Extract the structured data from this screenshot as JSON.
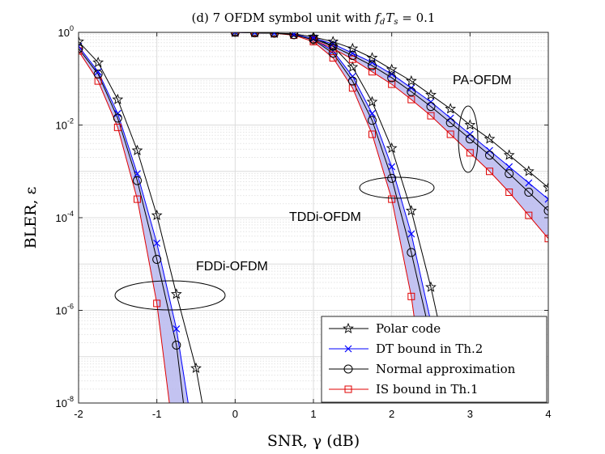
{
  "chart_data": {
    "type": "line",
    "title": "(d) 7 OFDM symbol unit with f_d T_s = 0.1",
    "title_prefix": "(d) 7 OFDM symbol unit with ",
    "title_math": "f",
    "title_math_sub1": "d",
    "title_math_T": "T",
    "title_math_sub2": "s",
    "title_suffix": " = 0.1",
    "xlabel": "SNR, γ (dB)",
    "ylabel": "BLER, ε",
    "xlim": [
      -2,
      4
    ],
    "ylim_log10": [
      -8,
      0
    ],
    "yscale": "log",
    "grid": true,
    "xticks": [
      -2,
      -1,
      0,
      1,
      2,
      3,
      4
    ],
    "yticks": [
      {
        "base": "10",
        "exp": "0"
      },
      {
        "base": "10",
        "exp": "-2"
      },
      {
        "base": "10",
        "exp": "-4"
      },
      {
        "base": "10",
        "exp": "-6"
      },
      {
        "base": "10",
        "exp": "-8"
      }
    ],
    "groups": [
      {
        "name": "FDDi-OFDM",
        "x": [
          -2,
          -1.75,
          -1.5,
          -1.25,
          -1,
          -0.75,
          -0.5
        ],
        "series": {
          "polar": [
            [
              -2,
              -0.2
            ],
            [
              -1.75,
              -0.65
            ],
            [
              -1.5,
              -1.45
            ],
            [
              -1.25,
              -2.55
            ],
            [
              -1,
              -3.95
            ],
            [
              -0.75,
              -5.65
            ],
            [
              -0.5,
              -7.25
            ],
            [
              -0.42,
              -8
            ]
          ],
          "dt": [
            [
              -2,
              -0.3
            ],
            [
              -1.75,
              -0.85
            ],
            [
              -1.5,
              -1.75
            ],
            [
              -1.25,
              -3.05
            ],
            [
              -1,
              -4.55
            ],
            [
              -0.75,
              -6.4
            ],
            [
              -0.6,
              -8
            ]
          ],
          "na": [
            [
              -2,
              -0.35
            ],
            [
              -1.75,
              -0.9
            ],
            [
              -1.5,
              -1.85
            ],
            [
              -1.25,
              -3.2
            ],
            [
              -1,
              -4.9
            ],
            [
              -0.75,
              -6.75
            ],
            [
              -0.66,
              -8
            ]
          ],
          "is": [
            [
              -2,
              -0.4
            ],
            [
              -1.75,
              -1.05
            ],
            [
              -1.5,
              -2.05
            ],
            [
              -1.25,
              -3.6
            ],
            [
              -1,
              -5.85
            ],
            [
              -0.84,
              -8
            ]
          ]
        }
      },
      {
        "name": "TDDi-OFDM",
        "x": [
          0,
          0.25,
          0.5,
          0.75,
          1,
          1.25,
          1.5,
          1.75,
          2,
          2.25,
          2.5,
          2.75
        ],
        "series": {
          "polar": [
            [
              -2,
              0
            ],
            [
              -1.75,
              0
            ],
            [
              -1.5,
              0
            ],
            [
              -1.25,
              0
            ],
            [
              -1,
              0
            ],
            [
              -0.75,
              0
            ],
            [
              -0.5,
              0
            ],
            [
              -0.25,
              0
            ],
            [
              0,
              0
            ],
            [
              0.25,
              -0.01
            ],
            [
              0.5,
              -0.02
            ],
            [
              0.75,
              -0.03
            ],
            [
              1,
              -0.1
            ],
            [
              1.25,
              -0.3
            ],
            [
              1.5,
              -0.75
            ],
            [
              1.75,
              -1.5
            ],
            [
              2,
              -2.5
            ],
            [
              2.25,
              -3.85
            ],
            [
              2.5,
              -5.5
            ],
            [
              2.75,
              -7.4
            ],
            [
              2.84,
              -8
            ]
          ],
          "dt": [
            [
              -2,
              0
            ],
            [
              -1.75,
              0
            ],
            [
              -1.5,
              0
            ],
            [
              -1.25,
              0
            ],
            [
              -1,
              0
            ],
            [
              -0.75,
              0
            ],
            [
              -0.5,
              0
            ],
            [
              -0.25,
              0
            ],
            [
              0,
              0
            ],
            [
              0.25,
              -0.01
            ],
            [
              0.5,
              -0.02
            ],
            [
              0.75,
              -0.04
            ],
            [
              1,
              -0.14
            ],
            [
              1.25,
              -0.4
            ],
            [
              1.5,
              -0.95
            ],
            [
              1.75,
              -1.75
            ],
            [
              2,
              -2.9
            ],
            [
              2.25,
              -4.35
            ],
            [
              2.5,
              -6.25
            ],
            [
              2.68,
              -8
            ]
          ],
          "na": [
            [
              -2,
              0
            ],
            [
              -1.75,
              0
            ],
            [
              -1.5,
              0
            ],
            [
              -1.25,
              0
            ],
            [
              -1,
              0
            ],
            [
              -0.75,
              0
            ],
            [
              -0.5,
              0
            ],
            [
              -0.25,
              0
            ],
            [
              0,
              0
            ],
            [
              0.25,
              -0.01
            ],
            [
              0.5,
              -0.02
            ],
            [
              0.75,
              -0.05
            ],
            [
              1,
              -0.16
            ],
            [
              1.25,
              -0.45
            ],
            [
              1.5,
              -1.05
            ],
            [
              1.75,
              -1.9
            ],
            [
              2,
              -3.15
            ],
            [
              2.25,
              -4.75
            ],
            [
              2.5,
              -6.6
            ],
            [
              2.62,
              -8
            ]
          ],
          "is": [
            [
              -2,
              0
            ],
            [
              -1.75,
              0
            ],
            [
              -1.5,
              0
            ],
            [
              -1.25,
              0
            ],
            [
              -1,
              0
            ],
            [
              -0.75,
              0
            ],
            [
              -0.5,
              0
            ],
            [
              -0.25,
              0
            ],
            [
              0,
              0
            ],
            [
              0.25,
              -0.01
            ],
            [
              0.5,
              -0.02
            ],
            [
              0.75,
              -0.06
            ],
            [
              1,
              -0.2
            ],
            [
              1.25,
              -0.55
            ],
            [
              1.5,
              -1.2
            ],
            [
              1.75,
              -2.2
            ],
            [
              2,
              -3.6
            ],
            [
              2.25,
              -5.7
            ],
            [
              2.44,
              -8
            ]
          ]
        }
      },
      {
        "name": "PA-OFDM",
        "x": [
          1,
          1.25,
          1.5,
          1.75,
          2,
          2.25,
          2.5,
          2.75,
          3,
          3.25,
          3.5,
          3.75,
          4
        ],
        "series": {
          "polar": [
            [
              1,
              -0.1
            ],
            [
              1.25,
              -0.2
            ],
            [
              1.5,
              -0.35
            ],
            [
              1.75,
              -0.55
            ],
            [
              2,
              -0.8
            ],
            [
              2.25,
              -1.05
            ],
            [
              2.5,
              -1.35
            ],
            [
              2.75,
              -1.65
            ],
            [
              3,
              -2
            ],
            [
              3.25,
              -2.3
            ],
            [
              3.5,
              -2.65
            ],
            [
              3.75,
              -3
            ],
            [
              4,
              -3.35
            ]
          ],
          "dt": [
            [
              1,
              -0.12
            ],
            [
              1.25,
              -0.25
            ],
            [
              1.5,
              -0.45
            ],
            [
              1.75,
              -0.65
            ],
            [
              2,
              -0.9
            ],
            [
              2.25,
              -1.2
            ],
            [
              2.5,
              -1.5
            ],
            [
              2.75,
              -1.85
            ],
            [
              3,
              -2.2
            ],
            [
              3.25,
              -2.55
            ],
            [
              3.5,
              -2.9
            ],
            [
              3.75,
              -3.25
            ],
            [
              4,
              -3.6
            ]
          ],
          "na": [
            [
              1,
              -0.14
            ],
            [
              1.25,
              -0.3
            ],
            [
              1.5,
              -0.5
            ],
            [
              1.75,
              -0.72
            ],
            [
              2,
              -0.98
            ],
            [
              2.25,
              -1.28
            ],
            [
              2.5,
              -1.6
            ],
            [
              2.75,
              -1.95
            ],
            [
              3,
              -2.3
            ],
            [
              3.25,
              -2.65
            ],
            [
              3.5,
              -3.05
            ],
            [
              3.75,
              -3.45
            ],
            [
              4,
              -3.85
            ]
          ],
          "is": [
            [
              1,
              -0.16
            ],
            [
              1.25,
              -0.35
            ],
            [
              1.5,
              -0.58
            ],
            [
              1.75,
              -0.85
            ],
            [
              2,
              -1.12
            ],
            [
              2.25,
              -1.45
            ],
            [
              2.5,
              -1.8
            ],
            [
              2.75,
              -2.2
            ],
            [
              3,
              -2.6
            ],
            [
              3.25,
              -3
            ],
            [
              3.5,
              -3.45
            ],
            [
              3.75,
              -3.95
            ],
            [
              4,
              -4.45
            ]
          ]
        }
      }
    ],
    "legend": {
      "position": "bottom-right",
      "entries": [
        {
          "label": "Polar code",
          "marker": "pentagram",
          "color": "#000000"
        },
        {
          "label": "DT bound in Th.2",
          "marker": "x",
          "color": "#0000ff"
        },
        {
          "label": "Normal approximation",
          "marker": "circle",
          "color": "#000000"
        },
        {
          "label": "IS bound in Th.1",
          "marker": "square",
          "color": "#e00000"
        }
      ]
    },
    "annotations": [
      {
        "text": "FDDi-OFDM"
      },
      {
        "text": "TDDi-OFDM"
      },
      {
        "text": "PA-OFDM"
      }
    ],
    "colors": {
      "polar": "#000000",
      "dt": "#0000ff",
      "na": "#000000",
      "is": "#e00000",
      "fill": "#b8b8ee"
    }
  }
}
